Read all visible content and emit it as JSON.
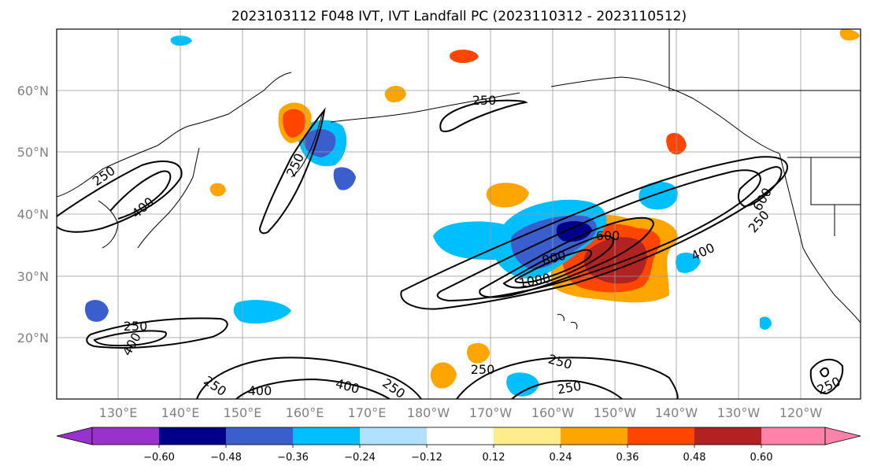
{
  "figure": {
    "title": "2023103112 F048 IVT, IVT Landfall PC (2023110312 - 2023110512)"
  },
  "map": {
    "lon_labels": [
      "130°E",
      "140°E",
      "150°E",
      "160°E",
      "170°E",
      "180°W",
      "170°W",
      "160°W",
      "150°W",
      "140°W",
      "130°W",
      "120°W"
    ],
    "lat_labels": [
      "60°N",
      "50°N",
      "40°N",
      "30°N",
      "20°N"
    ],
    "gridlines": true,
    "contour_labels": [
      "250",
      "250",
      "250",
      "400",
      "250",
      "400",
      "250",
      "400",
      "600",
      "800",
      "1000",
      "600",
      "400",
      "250",
      "600",
      "250",
      "250",
      "400",
      "400",
      "250",
      "250",
      "250",
      "250"
    ]
  },
  "colorbar": {
    "tick_labels": [
      "−0.60",
      "−0.48",
      "−0.36",
      "−0.24",
      "−0.12",
      "0.12",
      "0.24",
      "0.36",
      "0.48",
      "0.60"
    ],
    "colors": [
      "#9932cc",
      "#00008b",
      "#3a5fcd",
      "#00bfff",
      "#b0e2ff",
      "#ffffff",
      "#ffec8b",
      "#ffa500",
      "#ff4500",
      "#b22222",
      "#ff82ab"
    ]
  }
}
